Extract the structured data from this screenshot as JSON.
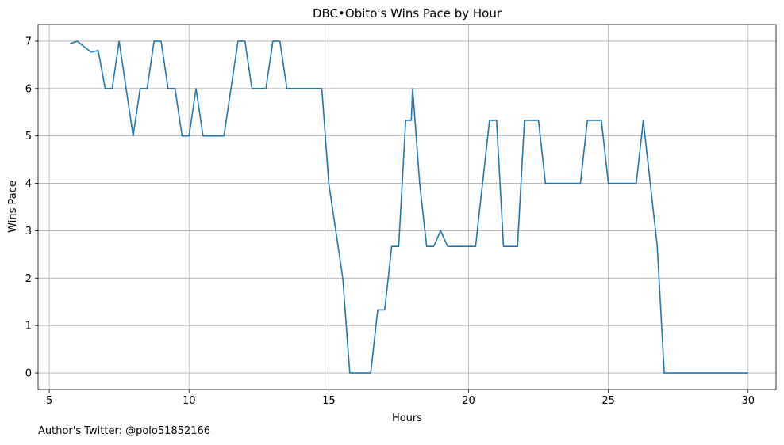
{
  "chart_data": {
    "type": "line",
    "title": "DBC•Obito's Wins Pace by Hour",
    "xlabel": "Hours",
    "ylabel": "Wins Pace",
    "xlim": [
      4.6,
      31.0
    ],
    "ylim": [
      -0.35,
      7.35
    ],
    "xticks": [
      5,
      10,
      15,
      20,
      25,
      30
    ],
    "yticks": [
      0,
      1,
      2,
      3,
      4,
      5,
      6,
      7
    ],
    "grid": true,
    "line_color": "#1f77b4",
    "series": [
      {
        "x": [
          5.75,
          6.0,
          6.25,
          6.5,
          6.75,
          7.0,
          7.25,
          7.5,
          7.75,
          8.0,
          8.25,
          8.5,
          8.75,
          9.0,
          9.25,
          9.5,
          9.75,
          10.0,
          10.25,
          10.5,
          10.75,
          11.0,
          11.25,
          11.5,
          11.75,
          12.0,
          12.25,
          12.5,
          12.75,
          13.0,
          13.25,
          13.5,
          13.75,
          14.0,
          14.25,
          14.5,
          14.75,
          15.0,
          15.25,
          15.5,
          15.75,
          16.0,
          16.25,
          16.5,
          16.75,
          17.0,
          17.25,
          17.5,
          17.75,
          17.95,
          18.0,
          18.25,
          18.5,
          18.75,
          19.0,
          19.25,
          19.5,
          19.75,
          20.0,
          20.25,
          20.5,
          20.75,
          21.0,
          21.25,
          21.5,
          21.75,
          22.0,
          22.25,
          22.5,
          22.75,
          23.0,
          23.25,
          23.5,
          23.75,
          24.0,
          24.25,
          24.5,
          24.75,
          25.0,
          25.25,
          25.5,
          25.75,
          26.0,
          26.25,
          26.5,
          26.75,
          27.0,
          27.25,
          27.5,
          27.75,
          28.0,
          28.25,
          28.5,
          28.75,
          29.0,
          29.25,
          29.5,
          29.75,
          30.0
        ],
        "y": [
          6.95,
          7.0,
          6.88,
          6.77,
          6.8,
          6.0,
          6.0,
          7.0,
          6.0,
          5.0,
          6.0,
          6.0,
          7.0,
          7.0,
          6.0,
          6.0,
          5.0,
          5.0,
          6.0,
          5.0,
          5.0,
          5.0,
          5.0,
          6.0,
          7.0,
          7.0,
          6.0,
          6.0,
          6.0,
          7.0,
          7.0,
          6.0,
          6.0,
          6.0,
          6.0,
          6.0,
          6.0,
          4.0,
          3.0,
          2.0,
          0.0,
          0.0,
          0.0,
          0.0,
          1.33,
          1.33,
          2.67,
          2.67,
          5.33,
          5.33,
          6.0,
          4.0,
          2.67,
          2.67,
          3.0,
          2.67,
          2.67,
          2.67,
          2.67,
          2.67,
          4.0,
          5.33,
          5.33,
          2.67,
          2.67,
          2.67,
          5.33,
          5.33,
          5.33,
          4.0,
          4.0,
          4.0,
          4.0,
          4.0,
          4.0,
          5.33,
          5.33,
          5.33,
          4.0,
          4.0,
          4.0,
          4.0,
          4.0,
          5.33,
          4.0,
          2.67,
          0.0,
          0.0,
          0.0,
          0.0,
          0.0,
          0.0,
          0.0,
          0.0,
          0.0,
          0.0,
          0.0,
          0.0,
          0.0
        ]
      }
    ]
  },
  "footer": {
    "text": "Author's Twitter: @polo51852166"
  }
}
